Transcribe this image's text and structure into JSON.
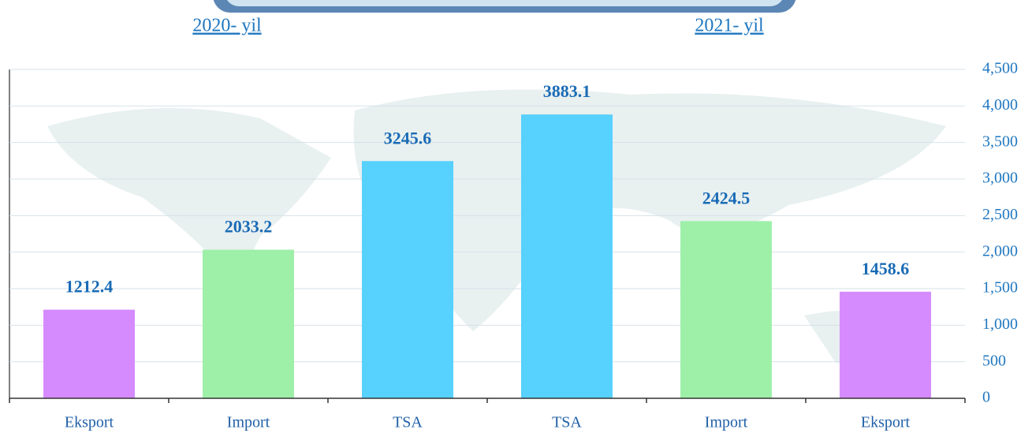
{
  "chart_data": {
    "type": "bar",
    "annotations": [
      "2020- yil",
      "2021- yil"
    ],
    "categories": [
      "Eksport",
      "Import",
      "TSA",
      "TSA",
      "Import",
      "Eksport"
    ],
    "values": [
      1212.4,
      2033.2,
      3245.6,
      3883.1,
      2424.5,
      1458.6
    ],
    "colors": [
      "#d58bfd",
      "#9ef0a9",
      "#57d1fd",
      "#57d1fd",
      "#9ef0a9",
      "#d58bfd"
    ],
    "ylim": [
      0,
      4500
    ],
    "yticks": [
      0,
      500,
      {
        "value": 1000,
        "label": "1,000"
      },
      {
        "value": 1500,
        "label": "1,500"
      },
      {
        "value": 2000,
        "label": "2,000"
      },
      {
        "value": 2500,
        "label": "2,500"
      },
      {
        "value": 3000,
        "label": "3,000"
      },
      {
        "value": 3500,
        "label": "3,500"
      },
      {
        "value": 4000,
        "label": "4,000"
      },
      {
        "value": 4500,
        "label": "4,500"
      }
    ],
    "y_axis_side": "right",
    "grid": true
  }
}
